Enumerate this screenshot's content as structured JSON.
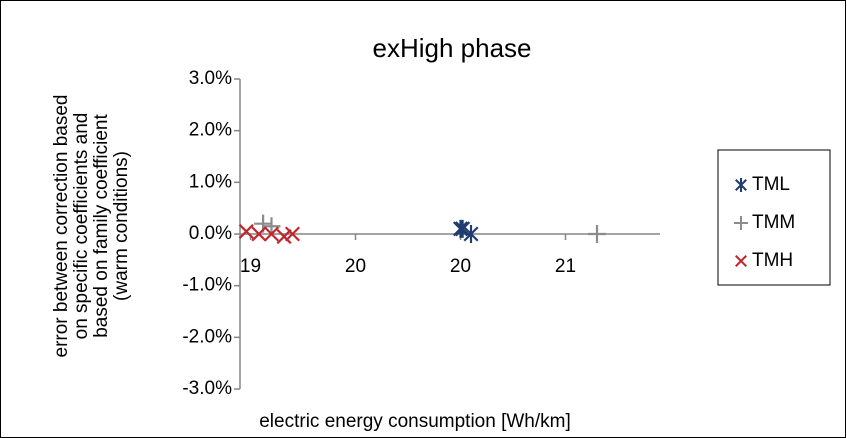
{
  "chart_data": {
    "type": "scatter",
    "title": "exHigh phase",
    "xlabel": "electric energy consumption [Wh/km]",
    "ylabel": [
      "error between correction based",
      "on specific coefficients and",
      "based on family coefficient",
      "(warm conditions)"
    ],
    "xlim": [
      18.95,
      20.95
    ],
    "xticks": [
      {
        "value": 19,
        "label": "19"
      },
      {
        "value": 19.5,
        "label": "20"
      },
      {
        "value": 20,
        "label": "20"
      },
      {
        "value": 20.5,
        "label": "21"
      }
    ],
    "ylim": [
      -3,
      3
    ],
    "yticks": [
      {
        "value": 3,
        "label": "3.0%"
      },
      {
        "value": 2,
        "label": "2.0%"
      },
      {
        "value": 1,
        "label": "1.0%"
      },
      {
        "value": 0,
        "label": "0.0%"
      },
      {
        "value": -1,
        "label": "-1.0%"
      },
      {
        "value": -2,
        "label": "-2.0%"
      },
      {
        "value": -3,
        "label": "-3.0%"
      }
    ],
    "grid": false,
    "legend": "right",
    "series": [
      {
        "name": "TML",
        "color": "#1f3d6e",
        "marker": "asterisk",
        "x": [
          20.0,
          20.01,
          20.05
        ],
        "values": [
          0.1,
          0.1,
          0.0
        ]
      },
      {
        "name": "TMM",
        "color": "#8c8c8c",
        "marker": "plus",
        "x": [
          19.06,
          19.1,
          20.65
        ],
        "values": [
          0.2,
          0.15,
          0.0
        ]
      },
      {
        "name": "TMH",
        "color": "#c0272d",
        "marker": "x",
        "x": [
          18.98,
          19.04,
          19.1,
          19.16,
          19.2
        ],
        "values": [
          0.05,
          0.0,
          0.0,
          -0.05,
          0.0
        ]
      }
    ]
  }
}
